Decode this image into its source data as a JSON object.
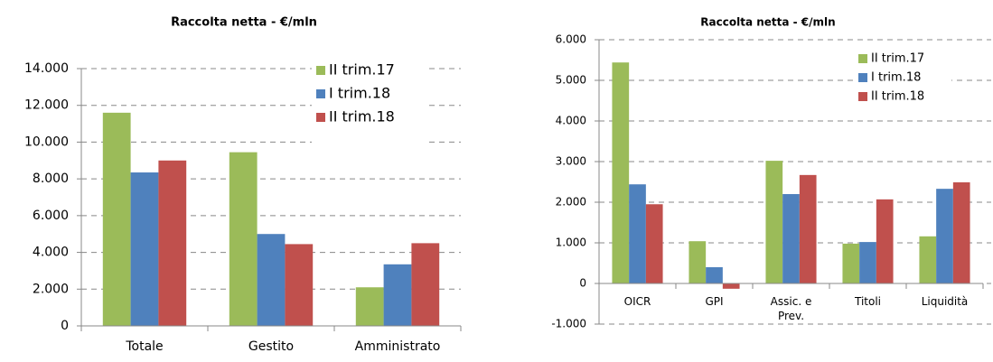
{
  "chart_data": [
    {
      "type": "bar",
      "title": "Raccolta netta - €/mln",
      "categories": [
        "Totale",
        "Gestito",
        "Amministrato"
      ],
      "series": [
        {
          "name": "II trim.17",
          "color": "#9bbb59",
          "values": [
            11600,
            9450,
            2100
          ]
        },
        {
          "name": "I trim.18",
          "color": "#4f81bd",
          "values": [
            8350,
            5000,
            3350
          ]
        },
        {
          "name": "II trim.18",
          "color": "#c0504d",
          "values": [
            9000,
            4450,
            4500
          ]
        }
      ],
      "ylim": [
        0,
        14000
      ],
      "yticks": [
        0,
        {
          "value": 2000,
          "label": "2.000"
        },
        {
          "value": 4000,
          "label": "4.000"
        },
        {
          "value": 6000,
          "label": "6.000"
        },
        {
          "value": 8000,
          "label": "8.000"
        },
        {
          "value": 10000,
          "label": "10.000"
        },
        {
          "value": 12000,
          "label": "12.000"
        },
        {
          "value": 14000,
          "label": "14.000"
        }
      ],
      "grid": true,
      "legend": "upper right"
    },
    {
      "type": "bar",
      "title": "Raccolta netta - €/mln",
      "categories": [
        "OICR",
        "GPI",
        "Assic. e Prev.",
        "Titoli",
        "Liquidità"
      ],
      "series": [
        {
          "name": "II trim.17",
          "color": "#9bbb59",
          "values": [
            5440,
            1040,
            3020,
            980,
            1160
          ]
        },
        {
          "name": "I trim.18",
          "color": "#4f81bd",
          "values": [
            2440,
            400,
            2200,
            1020,
            2330
          ]
        },
        {
          "name": "II trim.18",
          "color": "#c0504d",
          "values": [
            1950,
            -130,
            2670,
            2070,
            2490
          ]
        }
      ],
      "ylim": [
        -1000,
        6000
      ],
      "yticks": [
        {
          "value": -1000,
          "label": "-1.000"
        },
        0,
        {
          "value": 1000,
          "label": "1.000"
        },
        {
          "value": 2000,
          "label": "2.000"
        },
        {
          "value": 3000,
          "label": "3.000"
        },
        {
          "value": 4000,
          "label": "4.000"
        },
        {
          "value": 5000,
          "label": "5.000"
        },
        {
          "value": 6000,
          "label": "6.000"
        }
      ],
      "grid": true,
      "legend": "upper right"
    }
  ]
}
